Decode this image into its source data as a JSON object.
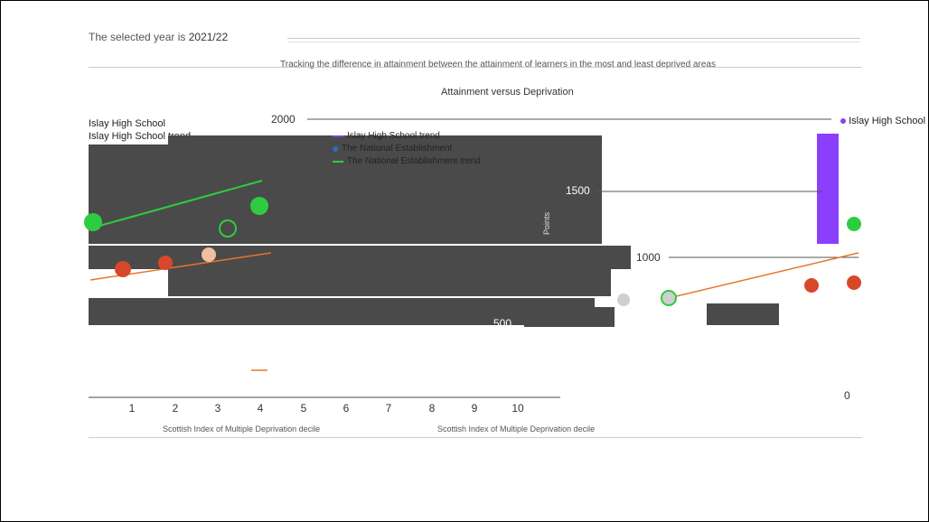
{
  "header": {
    "selected_year_label": "The selected year is",
    "selected_year_value": "2021/22",
    "subtitle": "Tracking the difference in attainment between the attainment of learners in the most and least deprived areas",
    "chart_title": "Attainment versus Deprivation"
  },
  "legend": {
    "left_school": "Islay High School",
    "left_school_trend": "Islay High School trend",
    "right_school": "Islay High School",
    "box_items": [
      {
        "label": "Islay High School trend",
        "color": "#7b3fe4"
      },
      {
        "label": "The National Establishment",
        "color": "#2c6fbb"
      },
      {
        "label": "The National Establishment trend",
        "color": "#2ecc40"
      }
    ]
  },
  "axes": {
    "y_ticks": [
      "2000",
      "1500",
      "1000",
      "500",
      "0"
    ],
    "x_ticks": [
      "1",
      "2",
      "3",
      "4",
      "5",
      "6",
      "7",
      "8",
      "9",
      "10"
    ],
    "y_axis_label": "Points",
    "x_axis_label": "Scottish Index of Multiple Deprivation decile",
    "y_tick_2000_left": "2000"
  },
  "footer": {
    "left_text": "Scottish Index of Multiple Deprivation decile",
    "right_text": "Scottish Index of Multiple Deprivation decile"
  },
  "colors": {
    "accent_purple": "#8a3ffc",
    "green": "#2ecc40",
    "orange": "#e8752a",
    "dark_gray": "#4a4a4a",
    "red_dot": "#d9472b"
  }
}
